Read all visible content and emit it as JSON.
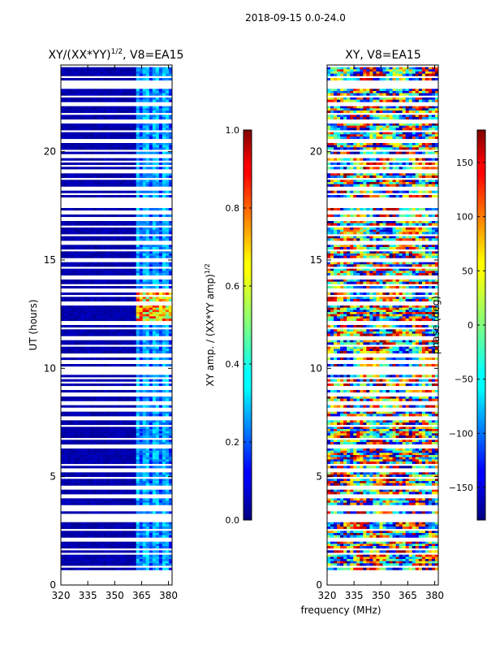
{
  "suptitle": "2018-09-15 0.0-24.0",
  "shared_xlabel": "frequency (MHz)",
  "colors": {
    "jet_dark_blue": "#00007f",
    "jet_blue": "#0000ff",
    "jet_cyan": "#00ffff",
    "jet_yellow": "#ffff00",
    "jet_red": "#ff0000",
    "jet_dark_red": "#7f0000"
  },
  "chart_data": [
    {
      "type": "heatmap",
      "title_main": "XY/(XX*YY)",
      "title_sup": "1/2",
      "title_suffix": ", V8=EA15",
      "xlabel": "",
      "ylabel": "UT (hours)",
      "xlim": [
        320,
        382
      ],
      "ylim": [
        0,
        24
      ],
      "xticks": [
        "320",
        "335",
        "350",
        "365",
        "380"
      ],
      "xtick_values": [
        320,
        335,
        350,
        365,
        380
      ],
      "yticks": [
        "0",
        "5",
        "10",
        "15",
        "20"
      ],
      "ytick_values": [
        0,
        5,
        10,
        15,
        20
      ],
      "colorbar": {
        "label_main": "XY amp. / (XX*YY amp)",
        "label_sup": "1/2",
        "range": [
          0.0,
          1.0
        ],
        "ticks": [
          "0.0",
          "0.2",
          "0.4",
          "0.6",
          "0.8",
          "1.0"
        ],
        "tick_values": [
          0.0,
          0.2,
          0.4,
          0.6,
          0.8,
          1.0
        ]
      },
      "notes": "mostly near 0 (dark blue); weak 0.1-0.3 signal at 362-382 MHz; strong 0.5-0.9 feature near 362-381 MHz around UT 12.3-13.5"
    },
    {
      "type": "heatmap",
      "title_main": "XY, V8=EA15",
      "xlabel": "frequency (MHz)",
      "ylabel": "",
      "xlim": [
        320,
        382
      ],
      "ylim": [
        0,
        24
      ],
      "xticks": [
        "320",
        "335",
        "350",
        "365",
        "380"
      ],
      "xtick_values": [
        320,
        335,
        350,
        365,
        380
      ],
      "yticks": [
        "0",
        "5",
        "10",
        "15",
        "20"
      ],
      "ytick_values": [
        0,
        5,
        10,
        15,
        20
      ],
      "colorbar": {
        "label_main": "phase (deg)",
        "range": [
          -180,
          180
        ],
        "ticks": [
          "−150",
          "−100",
          "−50",
          "0",
          "50",
          "100",
          "150"
        ],
        "tick_values": [
          -150,
          -100,
          -50,
          0,
          50,
          100,
          150
        ]
      },
      "notes": "phase wraps randomly across -180..180 deg"
    }
  ],
  "gap_rows_ut": [
    0.6,
    0.85,
    1.45,
    1.65,
    2.1,
    2.55,
    2.95,
    3.1,
    3.25,
    3.45,
    3.6,
    4.1,
    4.5,
    4.95,
    5.3,
    5.55,
    6.4,
    6.75,
    7.35,
    7.7,
    8.1,
    8.4,
    8.8,
    9.1,
    9.35,
    9.55,
    9.8,
    10.0,
    10.3,
    10.6,
    11.05,
    11.4,
    11.85,
    12.1,
    13.0,
    13.35,
    13.6,
    13.85,
    14.2,
    14.65,
    15.0,
    15.45,
    15.8,
    16.15,
    16.55,
    16.9,
    17.2,
    17.5,
    17.7,
    17.85,
    18.05,
    18.3,
    18.75,
    19.1,
    19.35,
    19.55,
    19.8,
    20.05,
    20.5,
    20.95,
    21.4,
    21.75,
    22.2,
    22.55,
    23.0,
    23.2,
    23.45
  ]
}
